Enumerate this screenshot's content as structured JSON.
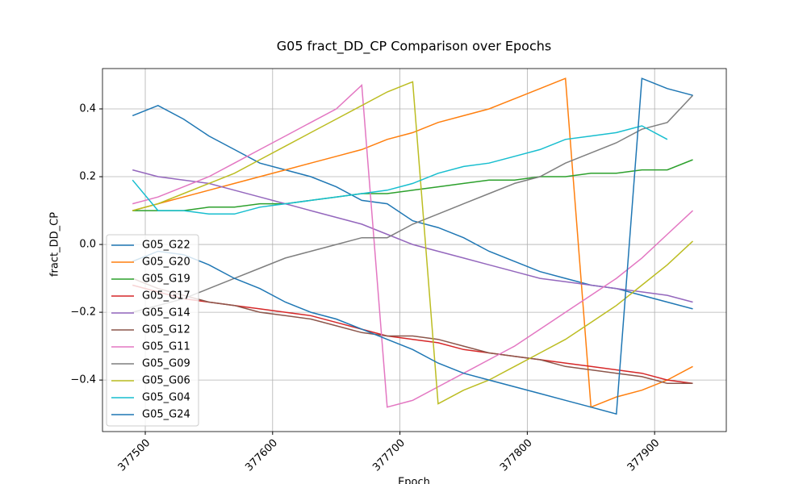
{
  "chart_data": {
    "type": "line",
    "title": "G05 fract_DD_CP Comparison over Epochs",
    "xlabel": "Epoch",
    "ylabel": "fract_DD_CP",
    "x": [
      377490,
      377510,
      377530,
      377550,
      377570,
      377590,
      377610,
      377630,
      377650,
      377670,
      377690,
      377710,
      377730,
      377750,
      377770,
      377790,
      377810,
      377830,
      377850,
      377870,
      377890,
      377910,
      377930
    ],
    "series": [
      {
        "name": "G05_G22",
        "color": "#1f77b4",
        "values": [
          0.38,
          0.41,
          0.37,
          0.32,
          0.28,
          0.24,
          0.22,
          0.2,
          0.17,
          0.13,
          0.12,
          0.07,
          0.05,
          0.02,
          -0.02,
          -0.05,
          -0.08,
          -0.1,
          -0.12,
          -0.13,
          -0.15,
          -0.17,
          -0.19
        ]
      },
      {
        "name": "G05_G20",
        "color": "#ff7f0e",
        "values": [
          0.1,
          0.12,
          0.14,
          0.16,
          0.18,
          0.2,
          0.22,
          0.24,
          0.26,
          0.28,
          0.31,
          0.33,
          0.36,
          0.38,
          0.4,
          0.43,
          0.46,
          0.49,
          -0.48,
          -0.45,
          -0.43,
          -0.4,
          -0.36
        ]
      },
      {
        "name": "G05_G19",
        "color": "#2ca02c",
        "values": [
          0.1,
          0.1,
          0.1,
          0.11,
          0.11,
          0.12,
          0.12,
          0.13,
          0.14,
          0.15,
          0.15,
          0.16,
          0.17,
          0.18,
          0.19,
          0.19,
          0.2,
          0.2,
          0.21,
          0.21,
          0.22,
          0.22,
          0.25
        ]
      },
      {
        "name": "G05_G17",
        "color": "#d62728",
        "values": [
          -0.12,
          -0.14,
          -0.16,
          -0.17,
          -0.18,
          -0.19,
          -0.2,
          -0.21,
          -0.23,
          -0.25,
          -0.27,
          -0.28,
          -0.29,
          -0.31,
          -0.32,
          -0.33,
          -0.34,
          -0.35,
          -0.36,
          -0.37,
          -0.38,
          -0.4,
          -0.41
        ]
      },
      {
        "name": "G05_G14",
        "color": "#9467bd",
        "values": [
          0.22,
          0.2,
          0.19,
          0.18,
          0.16,
          0.14,
          0.12,
          0.1,
          0.08,
          0.06,
          0.03,
          0.0,
          -0.02,
          -0.04,
          -0.06,
          -0.08,
          -0.1,
          -0.11,
          -0.12,
          -0.13,
          -0.14,
          -0.15,
          -0.17
        ]
      },
      {
        "name": "G05_G12",
        "color": "#8c564b",
        "values": [
          -0.1,
          -0.13,
          -0.15,
          -0.17,
          -0.18,
          -0.2,
          -0.21,
          -0.22,
          -0.24,
          -0.26,
          -0.27,
          -0.27,
          -0.28,
          -0.3,
          -0.32,
          -0.33,
          -0.34,
          -0.36,
          -0.37,
          -0.38,
          -0.39,
          -0.41,
          -0.41
        ]
      },
      {
        "name": "G05_G11",
        "color": "#e377c2",
        "values": [
          0.12,
          0.14,
          0.17,
          0.2,
          0.24,
          0.28,
          0.32,
          0.36,
          0.4,
          0.47,
          -0.48,
          -0.46,
          -0.42,
          -0.38,
          -0.34,
          -0.3,
          -0.25,
          -0.2,
          -0.15,
          -0.1,
          -0.04,
          0.03,
          0.1
        ]
      },
      {
        "name": "G05_G09",
        "color": "#7f7f7f",
        "values": [
          -0.2,
          -0.18,
          -0.16,
          -0.13,
          -0.1,
          -0.07,
          -0.04,
          -0.02,
          0.0,
          0.02,
          0.02,
          0.06,
          0.09,
          0.12,
          0.15,
          0.18,
          0.2,
          0.24,
          0.27,
          0.3,
          0.34,
          0.36,
          0.44
        ]
      },
      {
        "name": "G05_G06",
        "color": "#bcbd22",
        "values": [
          0.1,
          0.12,
          0.15,
          0.18,
          0.21,
          0.25,
          0.29,
          0.33,
          0.37,
          0.41,
          0.45,
          0.48,
          -0.47,
          -0.43,
          -0.4,
          -0.36,
          -0.32,
          -0.28,
          -0.23,
          -0.18,
          -0.12,
          -0.06,
          0.01
        ]
      },
      {
        "name": "G05_G04",
        "color": "#17becf",
        "values": [
          0.19,
          0.1,
          0.1,
          0.09,
          0.09,
          0.11,
          0.12,
          0.13,
          0.14,
          0.15,
          0.16,
          0.18,
          0.21,
          0.23,
          0.24,
          0.26,
          0.28,
          0.31,
          0.32,
          0.33,
          0.35,
          0.31,
          null
        ]
      },
      {
        "name": "G05_G24",
        "color": "#1f77b4",
        "values": [
          -0.05,
          -0.02,
          -0.03,
          -0.06,
          -0.1,
          -0.13,
          -0.17,
          -0.2,
          -0.22,
          -0.25,
          -0.28,
          -0.31,
          -0.35,
          -0.38,
          -0.4,
          -0.42,
          -0.44,
          -0.46,
          -0.48,
          -0.5,
          0.49,
          0.46,
          0.44
        ]
      }
    ],
    "xlim": [
      377466.4,
      377956.3
    ],
    "xticks": [
      377500,
      377600,
      377700,
      377800,
      377900
    ],
    "ylim": [
      -0.552,
      0.519
    ],
    "yticks": [
      {
        "value": -0.4,
        "label": "−0.4"
      },
      {
        "value": -0.2,
        "label": "−0.2"
      },
      {
        "value": 0,
        "label": "0.0"
      },
      0.2,
      0.4
    ],
    "grid": true,
    "legend": "lower left"
  }
}
